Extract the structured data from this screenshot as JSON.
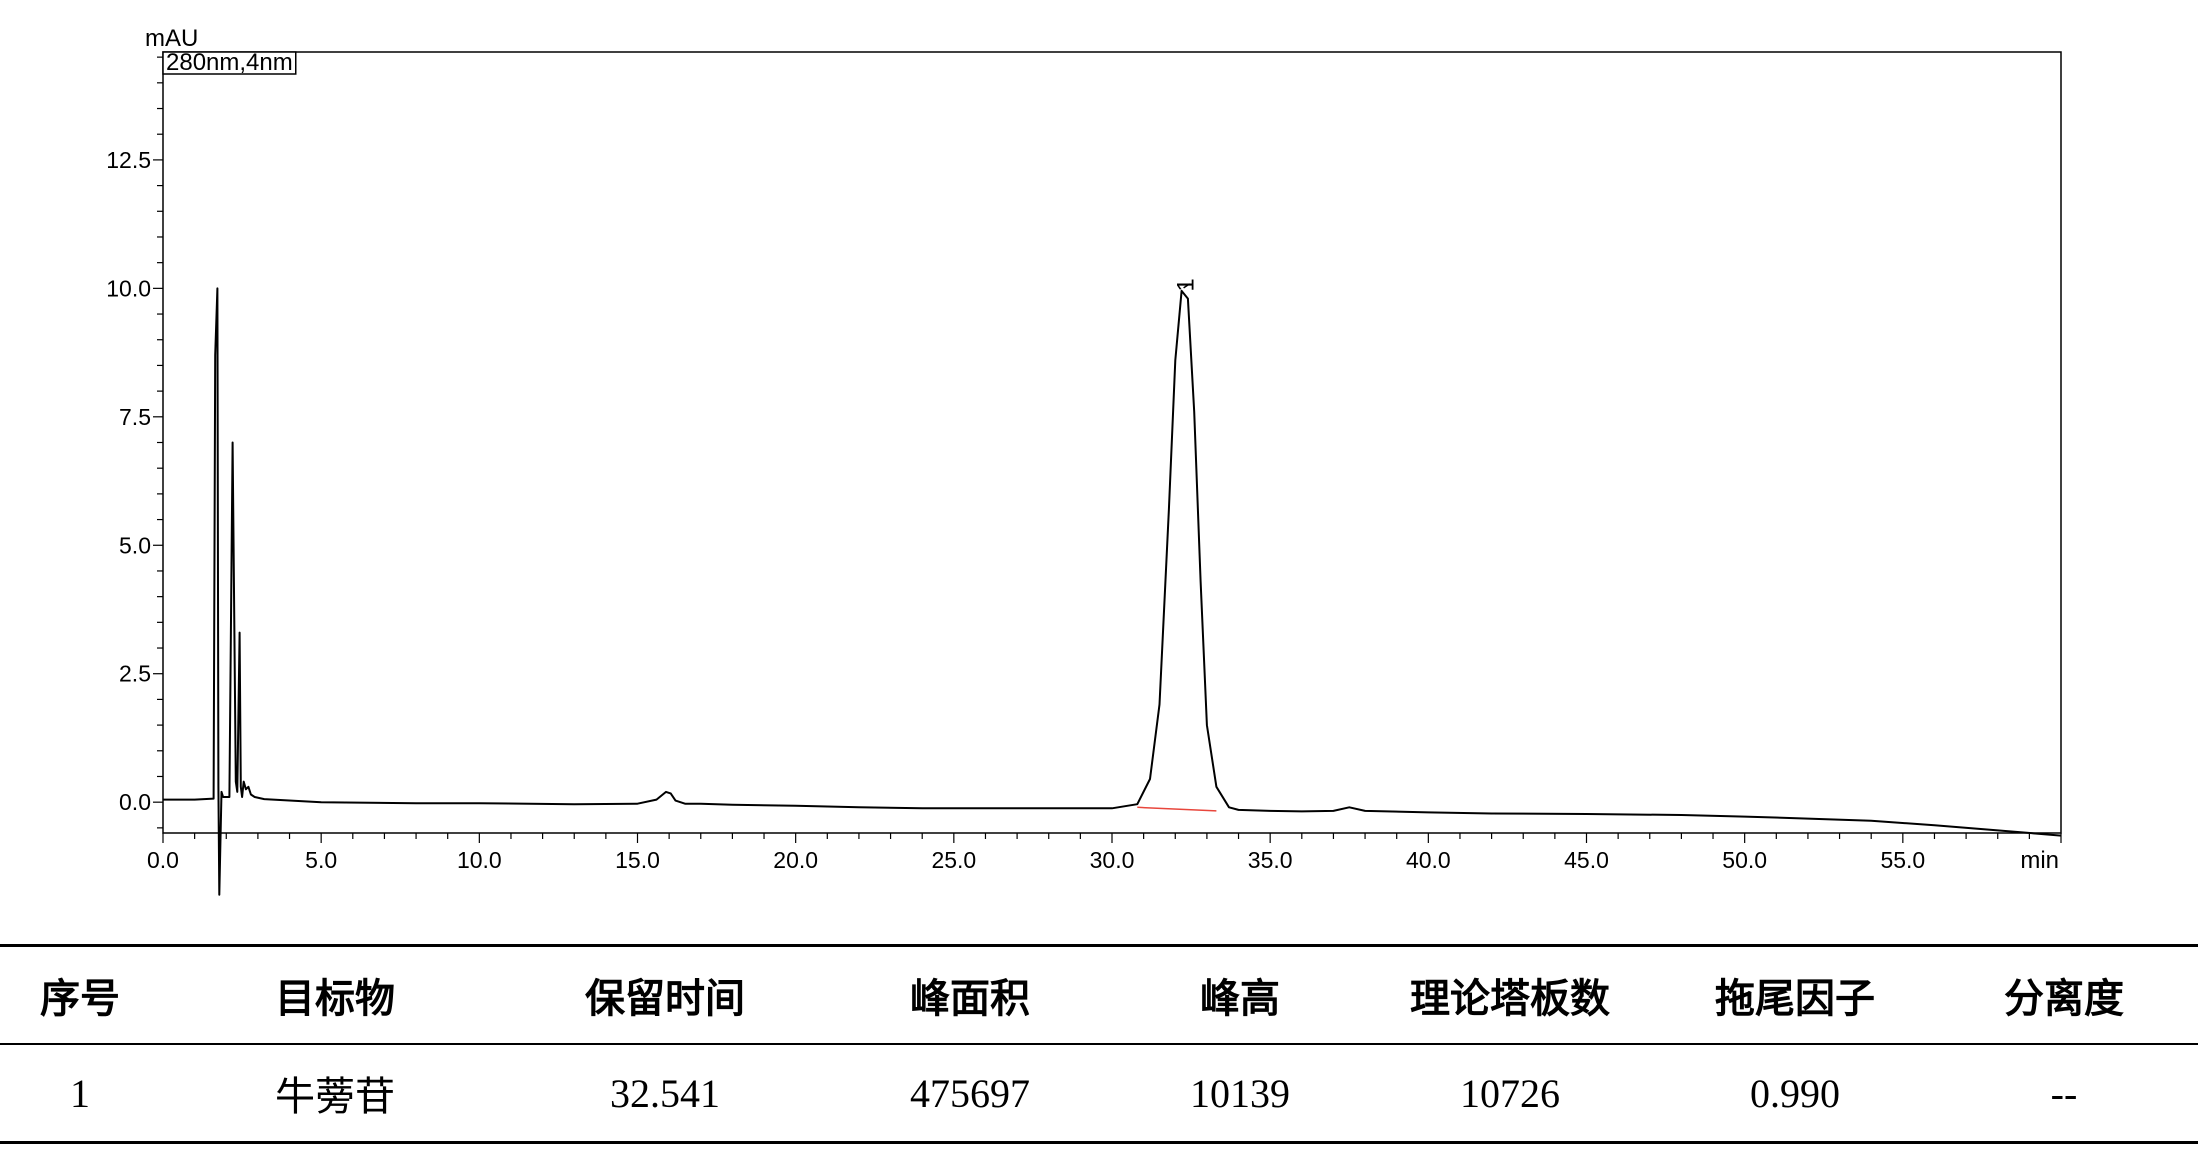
{
  "chart_data": {
    "type": "line",
    "ylabel": "mAU",
    "xlabel": "min",
    "legend": "280nm,4nm",
    "xlim": [
      0,
      60
    ],
    "ylim": [
      -0.6,
      14.6
    ],
    "x_ticks": [
      0,
      5,
      10,
      15,
      20,
      25,
      30,
      35,
      40,
      45,
      50,
      55
    ],
    "x_tick_labels": [
      "0.0",
      "5.0",
      "10.0",
      "15.0",
      "20.0",
      "25.0",
      "30.0",
      "35.0",
      "40.0",
      "45.0",
      "50.0",
      "55.0"
    ],
    "y_ticks": [
      0,
      2.5,
      5,
      7.5,
      10,
      12.5
    ],
    "y_tick_labels": [
      "0.0",
      "2.5",
      "5.0",
      "7.5",
      "10.0",
      "12.5"
    ],
    "grid": false,
    "series": [
      {
        "x": [
          0,
          1.0,
          1.6,
          1.65,
          1.72,
          1.75,
          1.78,
          1.85,
          1.9,
          2.1,
          2.2,
          2.3,
          2.35,
          2.42,
          2.46,
          2.5,
          2.55,
          2.62,
          2.7,
          2.78,
          2.9,
          3.2,
          5,
          8,
          10,
          13,
          15,
          15.6,
          15.9,
          16.05,
          16.2,
          16.5,
          17,
          18,
          20,
          22,
          24,
          26,
          28,
          30,
          30.8,
          31.2,
          31.5,
          31.8,
          32.0,
          32.2,
          32.4,
          32.6,
          32.8,
          33.0,
          33.3,
          33.7,
          34,
          35,
          36,
          37,
          37.5,
          38,
          40,
          42,
          45,
          48,
          50,
          52,
          54,
          56,
          58,
          60
        ],
        "y": [
          0.05,
          0.05,
          0.07,
          8.7,
          10.0,
          0.3,
          -1.8,
          0.2,
          0.1,
          0.1,
          7.0,
          0.4,
          0.2,
          3.3,
          0.3,
          0.1,
          0.4,
          0.25,
          0.3,
          0.15,
          0.1,
          0.06,
          0.0,
          -0.02,
          -0.02,
          -0.04,
          -0.03,
          0.05,
          0.2,
          0.17,
          0.03,
          -0.03,
          -0.03,
          -0.05,
          -0.07,
          -0.1,
          -0.12,
          -0.12,
          -0.12,
          -0.12,
          -0.04,
          0.45,
          1.9,
          5.7,
          8.6,
          9.95,
          9.8,
          7.6,
          4.3,
          1.5,
          0.3,
          -0.1,
          -0.15,
          -0.17,
          -0.18,
          -0.17,
          -0.1,
          -0.17,
          -0.2,
          -0.22,
          -0.23,
          -0.25,
          -0.28,
          -0.32,
          -0.36,
          -0.45,
          -0.55,
          -0.65
        ]
      }
    ],
    "baseline_segment": {
      "x": [
        30.8,
        33.3
      ],
      "y": [
        -0.1,
        -0.17
      ]
    },
    "annotations": [
      {
        "text": "1",
        "x": 32.2,
        "y": 9.95
      }
    ]
  },
  "table": {
    "headers": [
      "序号",
      "目标物",
      "保留时间",
      "峰面积",
      "峰高",
      "理论塔板数",
      "拖尾因子",
      "分离度"
    ],
    "rows": [
      [
        "1",
        "牛蒡苷",
        "32.541",
        "475697",
        "10139",
        "10726",
        "0.990",
        "--"
      ]
    ]
  }
}
